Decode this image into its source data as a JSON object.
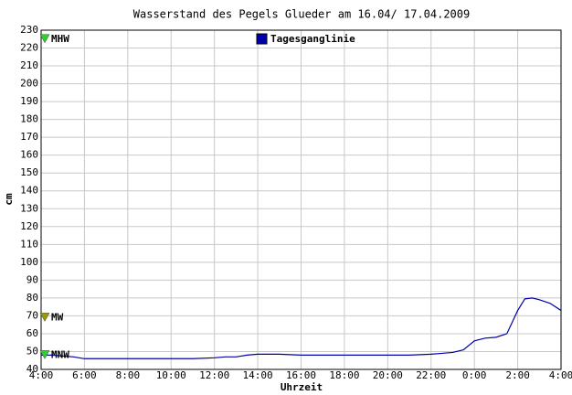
{
  "chart_data": {
    "type": "line",
    "title": "Wasserstand des Pegels Glueder am 16.04/ 17.04.2009",
    "x_label": "Uhrzeit",
    "y_label": "cm",
    "x": [
      4,
      4.5,
      5,
      5.5,
      6,
      7,
      8,
      9,
      10,
      11,
      12,
      12.5,
      13,
      13.5,
      14,
      15,
      16,
      17,
      18,
      19,
      20,
      21,
      22,
      22.5,
      23,
      23.5,
      24,
      24.5,
      25,
      25.5,
      26,
      26.33,
      26.67,
      27,
      27.5,
      28
    ],
    "series": [
      {
        "name": "Tagesganglinie",
        "color": "#0000aa",
        "values": [
          48,
          48,
          47.5,
          47,
          46,
          46,
          46,
          46,
          46,
          46,
          46.5,
          47,
          47,
          48,
          48.5,
          48.5,
          48,
          48,
          48,
          48,
          48,
          48,
          48.5,
          49,
          49.5,
          51,
          56,
          57.5,
          58,
          60,
          73,
          79.5,
          80,
          79,
          77,
          73
        ]
      }
    ],
    "reference_lines": [
      {
        "name": "MHW",
        "value": 225,
        "color": "#33cc33"
      },
      {
        "name": "MW",
        "value": 69,
        "color": "#999900"
      },
      {
        "name": "MNW",
        "value": 48,
        "color": "#33cc33"
      }
    ],
    "xlim": [
      4,
      28
    ],
    "xticks": [
      {
        "value": 4,
        "label": "4:00"
      },
      {
        "value": 6,
        "label": "6:00"
      },
      {
        "value": 8,
        "label": "8:00"
      },
      {
        "value": 10,
        "label": "10:00"
      },
      {
        "value": 12,
        "label": "12:00"
      },
      {
        "value": 14,
        "label": "14:00"
      },
      {
        "value": 16,
        "label": "16:00"
      },
      {
        "value": 18,
        "label": "18:00"
      },
      {
        "value": 20,
        "label": "20:00"
      },
      {
        "value": 22,
        "label": "22:00"
      },
      {
        "value": 24,
        "label": "0:00"
      },
      {
        "value": 26,
        "label": "2:00"
      },
      {
        "value": 28,
        "label": "4:00"
      }
    ],
    "ylim": [
      40,
      230
    ],
    "yticks": [
      40,
      50,
      60,
      70,
      80,
      90,
      100,
      110,
      120,
      130,
      140,
      150,
      160,
      170,
      180,
      190,
      200,
      210,
      220,
      230
    ],
    "grid": true
  }
}
